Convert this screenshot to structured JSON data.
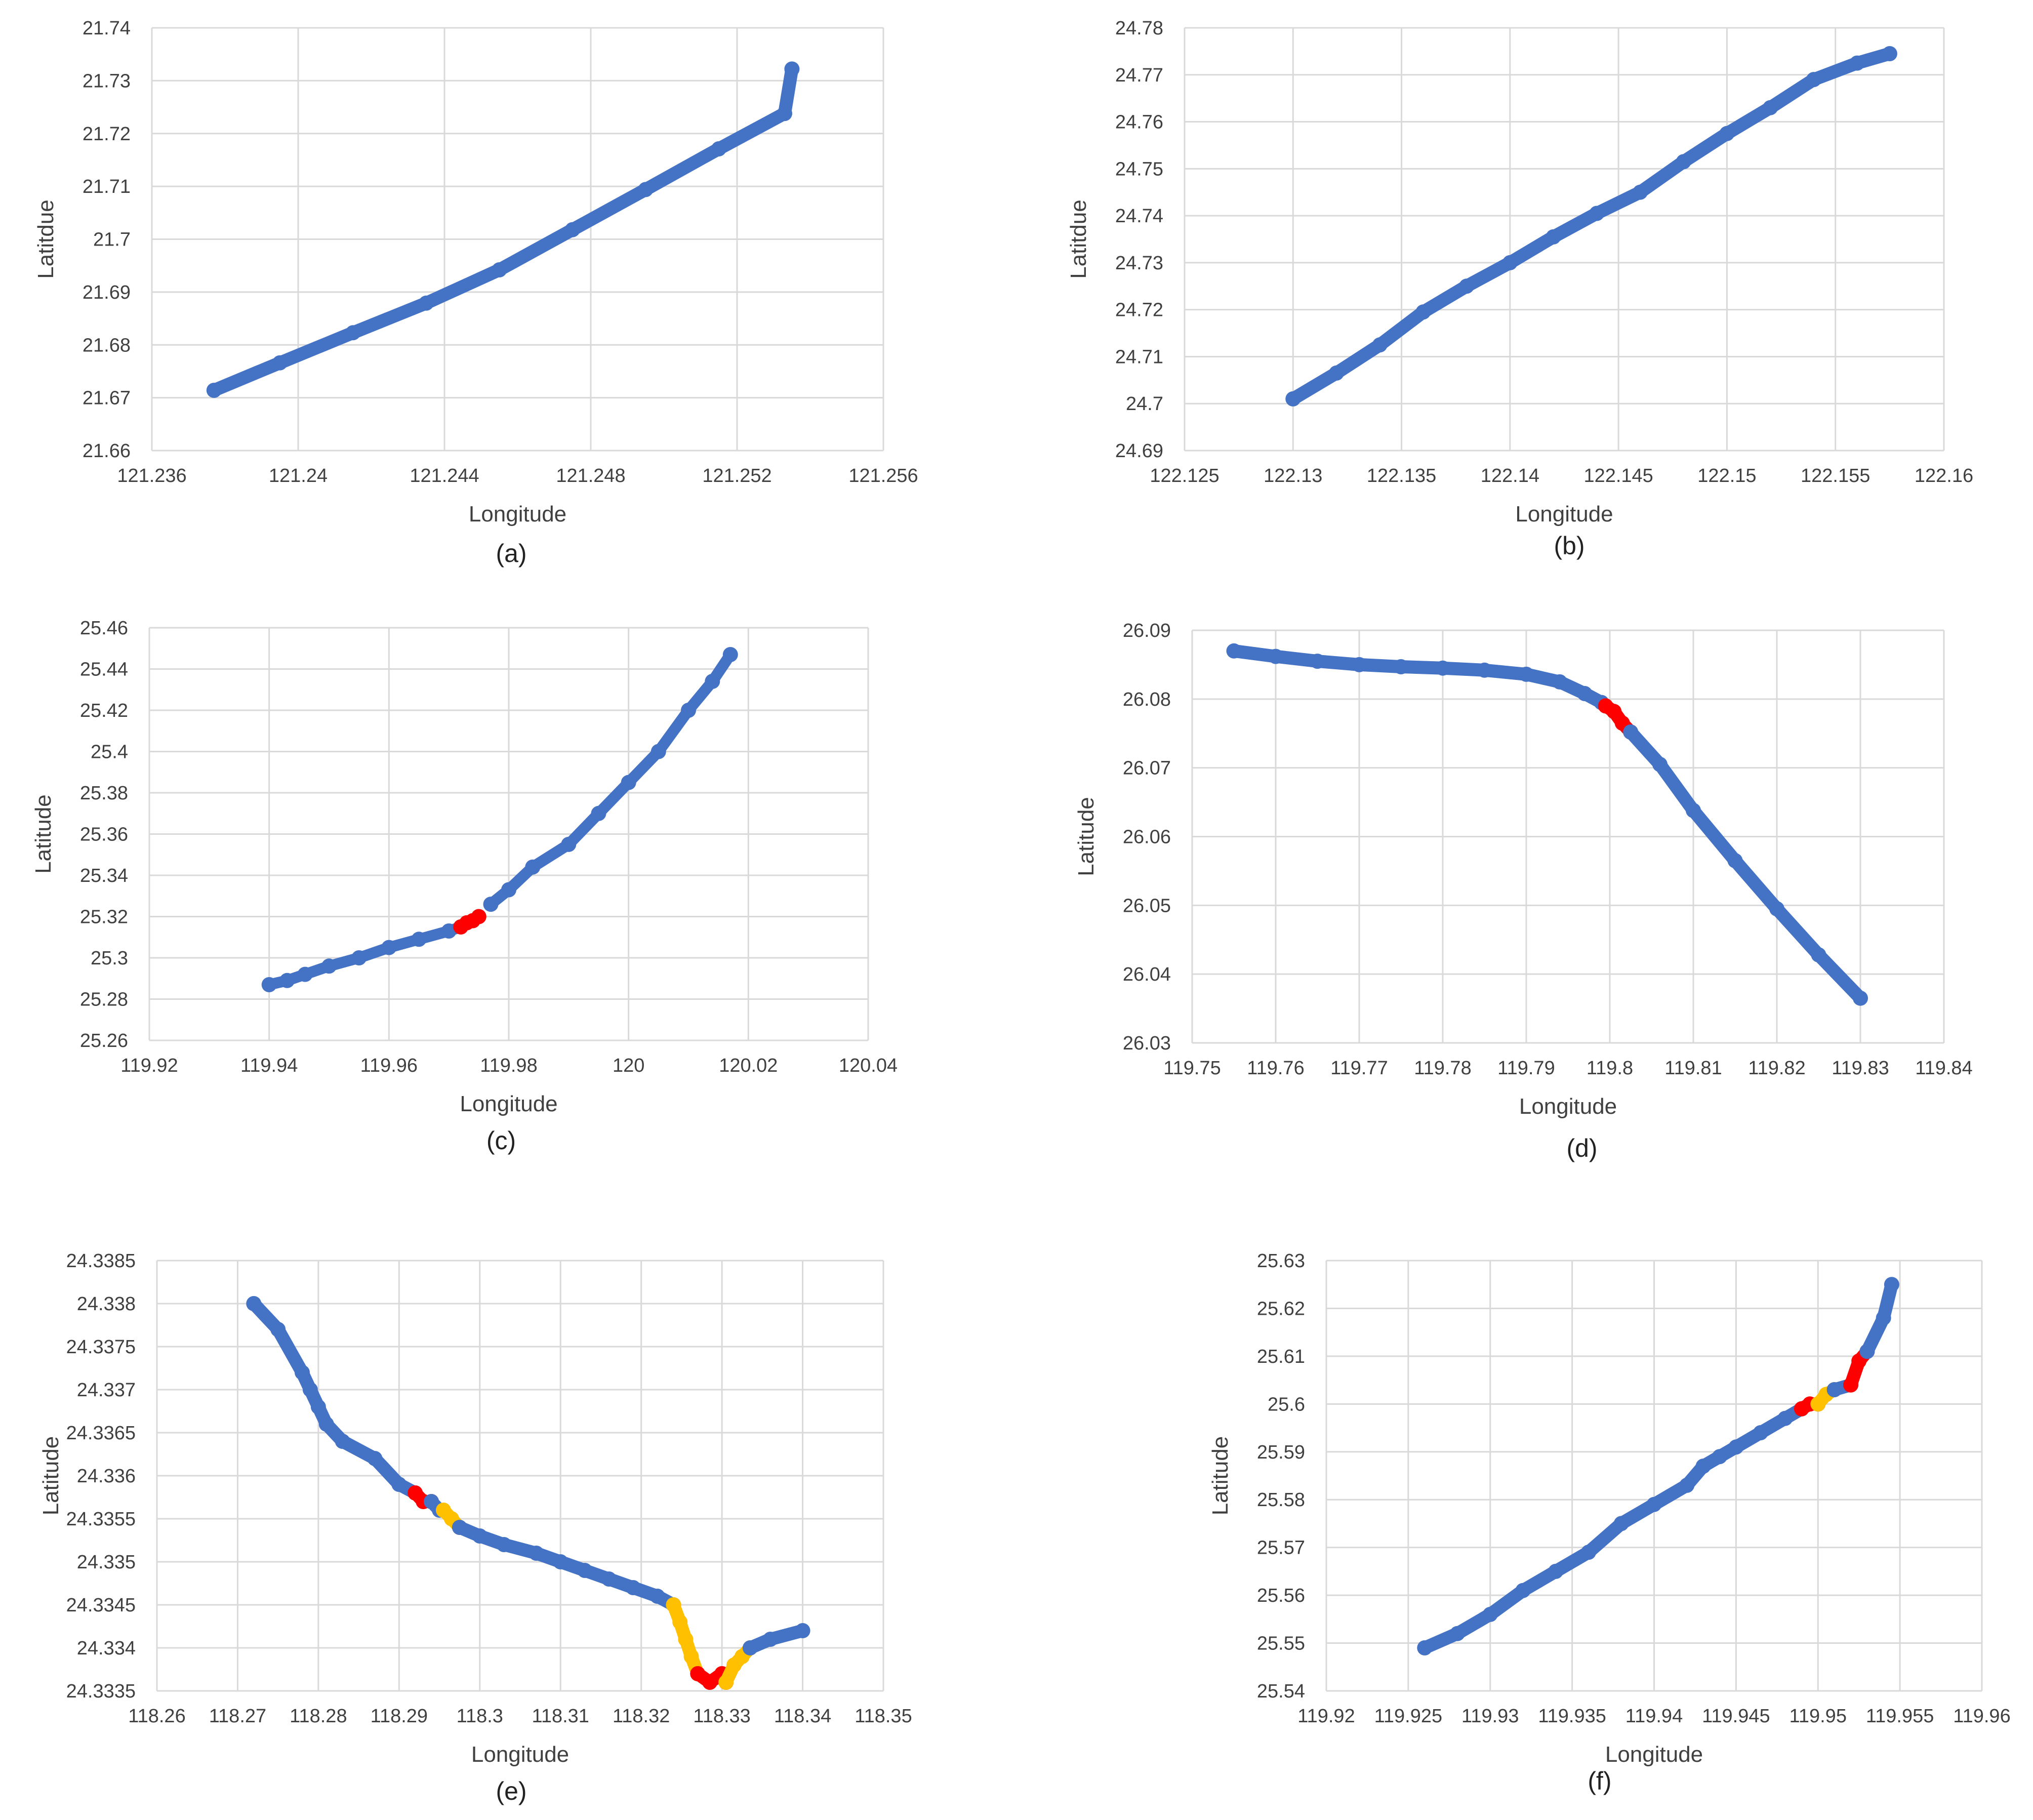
{
  "figure": {
    "panels": [
      {
        "caption": "(a)",
        "xlabel": "Longitude",
        "ylabel": "Latitdue",
        "x_ticks": [
          "121.236",
          "121.24",
          "121.244",
          "121.248",
          "121.252",
          "121.256"
        ],
        "y_ticks": [
          "21.66",
          "21.67",
          "21.68",
          "21.69",
          "21.7",
          "21.71",
          "21.72",
          "21.73",
          "21.74"
        ]
      },
      {
        "caption": "(b)",
        "xlabel": "Longitude",
        "ylabel": "Latitdue",
        "x_ticks": [
          "122.125",
          "122.13",
          "122.135",
          "122.14",
          "122.145",
          "122.15",
          "122.155",
          "122.16"
        ],
        "y_ticks": [
          "24.69",
          "24.7",
          "24.71",
          "24.72",
          "24.73",
          "24.74",
          "24.75",
          "24.76",
          "24.77",
          "24.78"
        ]
      },
      {
        "caption": "(c)",
        "xlabel": "Longitude",
        "ylabel": "Latitude",
        "x_ticks": [
          "119.92",
          "119.94",
          "119.96",
          "119.98",
          "120",
          "120.02",
          "120.04"
        ],
        "y_ticks": [
          "25.26",
          "25.28",
          "25.3",
          "25.32",
          "25.34",
          "25.36",
          "25.38",
          "25.4",
          "25.42",
          "25.44",
          "25.46"
        ]
      },
      {
        "caption": "(d)",
        "xlabel": "Longitude",
        "ylabel": "Latitude",
        "x_ticks": [
          "119.75",
          "119.76",
          "119.77",
          "119.78",
          "119.79",
          "119.8",
          "119.81",
          "119.82",
          "119.83",
          "119.84"
        ],
        "y_ticks": [
          "26.03",
          "26.04",
          "26.05",
          "26.06",
          "26.07",
          "26.08",
          "26.09"
        ]
      },
      {
        "caption": "(e)",
        "xlabel": "Longitude",
        "ylabel": "Latitude",
        "x_ticks": [
          "118.26",
          "118.27",
          "118.28",
          "118.29",
          "118.3",
          "118.31",
          "118.32",
          "118.33",
          "118.34",
          "118.35"
        ],
        "y_ticks": [
          "24.3335",
          "24.334",
          "24.3345",
          "24.335",
          "24.3355",
          "24.336",
          "24.3365",
          "24.337",
          "24.3375",
          "24.338",
          "24.3385"
        ]
      },
      {
        "caption": "(f)",
        "xlabel": "Longitude",
        "ylabel": "Latitude",
        "x_ticks": [
          "119.92",
          "119.925",
          "119.93",
          "119.935",
          "119.94",
          "119.945",
          "119.95",
          "119.955",
          "119.96"
        ],
        "y_ticks": [
          "25.54",
          "25.55",
          "25.56",
          "25.57",
          "25.58",
          "25.59",
          "25.6",
          "25.61",
          "25.62",
          "25.63"
        ]
      }
    ]
  },
  "chart_data": [
    {
      "type": "scatter",
      "xlabel": "Longitude",
      "ylabel": "Latitdue",
      "xlim": [
        121.236,
        121.256
      ],
      "ylim": [
        21.66,
        21.74
      ],
      "grid": true,
      "colors": {
        "normal": "#4472C4",
        "red": "#FF0000",
        "yellow": "#FFC000"
      },
      "series": [
        {
          "color": "normal",
          "x": [
            121.2377,
            121.2395,
            121.2415,
            121.2435,
            121.2455,
            121.2475,
            121.2495,
            121.2515,
            121.2533
          ],
          "y": [
            21.6714,
            21.6766,
            21.6823,
            21.6879,
            21.6942,
            21.7018,
            21.7094,
            21.7171,
            21.7238
          ]
        },
        {
          "color": "normal",
          "x": [
            121.2533,
            121.2535
          ],
          "y": [
            21.7238,
            21.7322
          ]
        }
      ]
    },
    {
      "type": "scatter",
      "xlabel": "Longitude",
      "ylabel": "Latitdue",
      "xlim": [
        122.125,
        122.16
      ],
      "ylim": [
        24.69,
        24.78
      ],
      "grid": true,
      "colors": {
        "normal": "#4472C4",
        "red": "#FF0000",
        "yellow": "#FFC000"
      },
      "series": [
        {
          "color": "normal",
          "x": [
            122.13,
            122.132,
            122.134,
            122.136,
            122.138,
            122.14,
            122.142,
            122.144,
            122.146,
            122.148,
            122.15,
            122.152,
            122.154,
            122.156,
            122.1575
          ],
          "y": [
            24.701,
            24.7065,
            24.7125,
            24.7195,
            24.725,
            24.73,
            24.7355,
            24.7405,
            24.745,
            24.7515,
            24.7575,
            24.763,
            24.769,
            24.7725,
            24.7745
          ]
        }
      ]
    },
    {
      "type": "scatter",
      "xlabel": "Longitude",
      "ylabel": "Latitude",
      "xlim": [
        119.92,
        120.04
      ],
      "ylim": [
        25.26,
        25.46
      ],
      "grid": true,
      "colors": {
        "normal": "#4472C4",
        "red": "#FF0000",
        "yellow": "#FFC000"
      },
      "series": [
        {
          "color": "normal",
          "x": [
            119.94,
            119.943,
            119.946,
            119.95,
            119.955,
            119.96,
            119.965,
            119.97,
            119.972
          ],
          "y": [
            25.287,
            25.289,
            25.292,
            25.296,
            25.3,
            25.305,
            25.309,
            25.313,
            25.315
          ]
        },
        {
          "color": "red",
          "x": [
            119.972,
            119.973,
            119.974,
            119.975
          ],
          "y": [
            25.315,
            25.317,
            25.318,
            25.32
          ]
        },
        {
          "color": "normal",
          "x": [
            119.977,
            119.98,
            119.984,
            119.99,
            119.995,
            120.0,
            120.005,
            120.01,
            120.014,
            120.017
          ],
          "y": [
            25.326,
            25.333,
            25.344,
            25.355,
            25.37,
            25.385,
            25.4,
            25.42,
            25.434,
            25.447
          ]
        }
      ]
    },
    {
      "type": "scatter",
      "xlabel": "Longitude",
      "ylabel": "Latitude",
      "xlim": [
        119.75,
        119.84
      ],
      "ylim": [
        26.03,
        26.09
      ],
      "grid": true,
      "colors": {
        "normal": "#4472C4",
        "red": "#FF0000",
        "yellow": "#FFC000"
      },
      "series": [
        {
          "color": "normal",
          "x": [
            119.755,
            119.76,
            119.765,
            119.77,
            119.775,
            119.78,
            119.785,
            119.79,
            119.794,
            119.797,
            119.799
          ],
          "y": [
            26.087,
            26.0862,
            26.0855,
            26.085,
            26.0847,
            26.0845,
            26.0842,
            26.0836,
            26.0825,
            26.0808,
            26.0795
          ]
        },
        {
          "color": "red",
          "x": [
            119.7995,
            119.8005,
            119.8015,
            119.8025
          ],
          "y": [
            26.079,
            26.0782,
            26.0765,
            26.0752
          ]
        },
        {
          "color": "normal",
          "x": [
            119.8025,
            119.806,
            119.81,
            119.815,
            119.82,
            119.825,
            119.83
          ],
          "y": [
            26.0752,
            26.0705,
            26.0638,
            26.0565,
            26.0495,
            26.0428,
            26.0365
          ]
        }
      ]
    },
    {
      "type": "scatter",
      "xlabel": "Longitude",
      "ylabel": "Latitude",
      "xlim": [
        118.26,
        118.35
      ],
      "ylim": [
        24.3335,
        24.3385
      ],
      "grid": true,
      "colors": {
        "normal": "#4472C4",
        "red": "#FF0000",
        "yellow": "#FFC000"
      },
      "series": [
        {
          "color": "normal",
          "x": [
            118.272,
            118.275,
            118.278,
            118.279,
            118.28,
            118.281,
            118.283,
            118.287,
            118.29,
            118.292
          ],
          "y": [
            24.338,
            24.3377,
            24.3372,
            24.337,
            24.3368,
            24.3366,
            24.3364,
            24.3362,
            24.3359,
            24.3358
          ]
        },
        {
          "color": "red",
          "x": [
            118.292,
            118.293,
            118.294
          ],
          "y": [
            24.3358,
            24.3357,
            24.3357
          ]
        },
        {
          "color": "normal",
          "x": [
            118.294,
            118.295
          ],
          "y": [
            24.3357,
            24.3356
          ]
        },
        {
          "color": "yellow",
          "x": [
            118.2955,
            118.2965,
            118.2975
          ],
          "y": [
            24.3356,
            24.3355,
            24.3354
          ]
        },
        {
          "color": "normal",
          "x": [
            118.2975,
            118.3,
            118.303,
            118.307,
            118.31,
            118.313,
            118.316,
            118.319,
            118.322,
            118.324
          ],
          "y": [
            24.3354,
            24.3353,
            24.3352,
            24.3351,
            24.335,
            24.3349,
            24.3348,
            24.3347,
            24.3346,
            24.3345
          ]
        },
        {
          "color": "yellow",
          "x": [
            118.324,
            118.3248,
            118.3255,
            118.3262,
            118.327
          ],
          "y": [
            24.3345,
            24.3343,
            24.3341,
            24.3339,
            24.3337
          ]
        },
        {
          "color": "red",
          "x": [
            118.327,
            118.3285,
            118.33,
            118.3305
          ],
          "y": [
            24.3337,
            24.3336,
            24.3337,
            24.3336
          ]
        },
        {
          "color": "yellow",
          "x": [
            118.3305,
            118.3315,
            118.3325,
            118.3335
          ],
          "y": [
            24.3336,
            24.3338,
            24.3339,
            24.334
          ]
        },
        {
          "color": "normal",
          "x": [
            118.3335,
            118.336,
            118.34
          ],
          "y": [
            24.334,
            24.3341,
            24.3342
          ]
        }
      ]
    },
    {
      "type": "scatter",
      "xlabel": "Longitude",
      "ylabel": "Latitude",
      "xlim": [
        119.92,
        119.96
      ],
      "ylim": [
        25.54,
        25.63
      ],
      "grid": true,
      "colors": {
        "normal": "#4472C4",
        "red": "#FF0000",
        "yellow": "#FFC000"
      },
      "series": [
        {
          "color": "normal",
          "x": [
            119.926,
            119.928,
            119.93,
            119.932,
            119.934,
            119.936,
            119.938,
            119.94,
            119.942,
            119.943,
            119.944,
            119.945,
            119.9465,
            119.948,
            119.949
          ],
          "y": [
            25.549,
            25.552,
            25.556,
            25.561,
            25.565,
            25.569,
            25.575,
            25.579,
            25.583,
            25.587,
            25.589,
            25.591,
            25.594,
            25.597,
            25.599
          ]
        },
        {
          "color": "red",
          "x": [
            119.949,
            119.9495,
            119.95
          ],
          "y": [
            25.599,
            25.6,
            25.6
          ]
        },
        {
          "color": "yellow",
          "x": [
            119.95,
            119.9505,
            119.951
          ],
          "y": [
            25.6,
            25.602,
            25.603
          ]
        },
        {
          "color": "normal",
          "x": [
            119.951,
            119.952
          ],
          "y": [
            25.603,
            25.604
          ]
        },
        {
          "color": "red",
          "x": [
            119.952,
            119.9525,
            119.953
          ],
          "y": [
            25.604,
            25.609,
            25.611
          ]
        },
        {
          "color": "normal",
          "x": [
            119.953,
            119.954,
            119.9545
          ],
          "y": [
            25.611,
            25.618,
            25.625
          ]
        }
      ]
    }
  ]
}
